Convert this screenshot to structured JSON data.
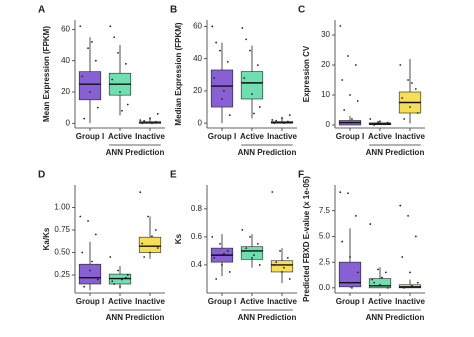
{
  "chart_data": [
    {
      "type": "box",
      "label": "A",
      "ylabel": "Mean Expression (FPKM)",
      "categories": [
        "Group I",
        "Active",
        "Inactive"
      ],
      "group_label": "ANN Prediction",
      "colors": [
        "#7a4fcf",
        "#5fdba8",
        "#f5dc45"
      ],
      "stats": [
        [
          0,
          15,
          25,
          33,
          55
        ],
        [
          5,
          18,
          25,
          32,
          50
        ],
        [
          0,
          0,
          0.3,
          1,
          4
        ]
      ],
      "points": [
        [
          62,
          48,
          40,
          30,
          20,
          10,
          3,
          52
        ],
        [
          62,
          45,
          38,
          28,
          20,
          12,
          55,
          8
        ],
        [
          2,
          0.5,
          1,
          0,
          3,
          6,
          1.5,
          0
        ]
      ],
      "ylim": [
        -3,
        66
      ],
      "yticks": [
        0,
        20,
        40,
        60
      ]
    },
    {
      "type": "box",
      "label": "B",
      "ylabel": "Median Expression (FPKM)",
      "categories": [
        "Group I",
        "Active",
        "Inactive"
      ],
      "group_label": "ANN Prediction",
      "colors": [
        "#7a4fcf",
        "#5fdba8",
        "#f5dc45"
      ],
      "stats": [
        [
          0,
          10,
          23,
          33,
          50
        ],
        [
          3,
          15,
          25,
          32,
          48
        ],
        [
          0,
          0,
          0.3,
          1,
          4
        ]
      ],
      "points": [
        [
          60,
          45,
          38,
          28,
          15,
          5,
          50,
          20
        ],
        [
          59,
          45,
          36,
          28,
          18,
          10,
          52,
          6
        ],
        [
          2,
          0.5,
          1,
          0,
          3,
          5,
          1.5,
          0
        ]
      ],
      "ylim": [
        -3,
        64
      ],
      "yticks": [
        0,
        20,
        40,
        60
      ]
    },
    {
      "type": "box",
      "label": "C",
      "ylabel": "Expression CV",
      "categories": [
        "Group I",
        "Active",
        "Inactive"
      ],
      "group_label": "ANN Prediction",
      "colors": [
        "#7a4fcf",
        "#5fdba8",
        "#f5dc45"
      ],
      "stats": [
        [
          0,
          0,
          0.8,
          1.5,
          3
        ],
        [
          0,
          0.1,
          0.4,
          0.7,
          1.5
        ],
        [
          0.5,
          4,
          7.5,
          11,
          22
        ]
      ],
      "points": [
        [
          33,
          23,
          20,
          15,
          10,
          8,
          5,
          2
        ],
        [
          2,
          1,
          0.5,
          0.3,
          1.2,
          0.8,
          0,
          0.2
        ],
        [
          20,
          15,
          12,
          9,
          6,
          4,
          2,
          14
        ]
      ],
      "ylim": [
        -1,
        35
      ],
      "yticks": [
        0,
        10,
        20,
        30
      ]
    },
    {
      "type": "box",
      "label": "D",
      "ylabel": "Ka/Ks",
      "categories": [
        "Group I",
        "Active",
        "Inactive"
      ],
      "group_label": "ANN Prediction",
      "colors": [
        "#7a4fcf",
        "#5fdba8",
        "#f5dc45"
      ],
      "stats": [
        [
          0.08,
          0.15,
          0.22,
          0.37,
          0.62
        ],
        [
          0.1,
          0.15,
          0.21,
          0.26,
          0.35
        ],
        [
          0.43,
          0.5,
          0.57,
          0.67,
          0.9
        ]
      ],
      "points": [
        [
          0.9,
          0.85,
          0.7,
          0.5,
          0.3,
          0.2,
          0.12,
          0.4
        ],
        [
          0.45,
          0.3,
          0.22,
          0.18,
          0.12,
          0.25,
          0.15,
          0.2
        ],
        [
          1.17,
          0.9,
          0.75,
          0.6,
          0.5,
          0.55,
          0.45,
          0.68
        ]
      ],
      "ylim": [
        0.05,
        1.25
      ],
      "yticks": [
        {
          "value": 0.25,
          "label": "0.25"
        },
        {
          "value": 0.5,
          "label": "0.50"
        },
        {
          "value": 0.75,
          "label": "0.75"
        },
        {
          "value": 1,
          "label": "1.00"
        }
      ]
    },
    {
      "type": "box",
      "label": "E",
      "ylabel": "Ks",
      "categories": [
        "Group I",
        "Active",
        "Inactive"
      ],
      "group_label": "ANN Prediction",
      "colors": [
        "#7a4fcf",
        "#5fdba8",
        "#f5dc45"
      ],
      "stats": [
        [
          0.32,
          0.42,
          0.47,
          0.52,
          0.62
        ],
        [
          0.38,
          0.44,
          0.5,
          0.53,
          0.62
        ],
        [
          0.27,
          0.35,
          0.4,
          0.43,
          0.52
        ]
      ],
      "points": [
        [
          0.6,
          0.55,
          0.5,
          0.45,
          0.4,
          0.35,
          0.3,
          0.48
        ],
        [
          0.65,
          0.6,
          0.55,
          0.5,
          0.45,
          0.4,
          0.52,
          0.47
        ],
        [
          0.92,
          0.5,
          0.45,
          0.4,
          0.35,
          0.3,
          0.42,
          0.38
        ]
      ],
      "ylim": [
        0.2,
        0.97
      ],
      "yticks": [
        0.4,
        0.6,
        0.8
      ]
    },
    {
      "type": "box",
      "label": "F",
      "ylabel": "Predicted FBXD E-value (x 1e-05)",
      "categories": [
        "Group I",
        "Active",
        "Inactive"
      ],
      "group_label": "ANN Prediction",
      "colors": [
        "#7a4fcf",
        "#5fdba8",
        "#f5dc45"
      ],
      "stats": [
        [
          0,
          0.1,
          0.5,
          2.5,
          5.8
        ],
        [
          0,
          0,
          0.2,
          0.9,
          2
        ],
        [
          0,
          0,
          0.1,
          0.3,
          0.8
        ]
      ],
      "points": [
        [
          9.3,
          9.2,
          7,
          4.5,
          3,
          1.5,
          0.5,
          0
        ],
        [
          6.2,
          1.8,
          1.5,
          0.8,
          0.3,
          0,
          0.5,
          1
        ],
        [
          8,
          7,
          5,
          3,
          1.5,
          0.5,
          0,
          0.2
        ]
      ],
      "ylim": [
        -0.5,
        10
      ],
      "yticks": [
        {
          "value": 0,
          "label": "0.0"
        },
        {
          "value": 2.5,
          "label": "2.5"
        },
        {
          "value": 5,
          "label": "5.0"
        },
        {
          "value": 7.5,
          "label": "7.5"
        }
      ]
    }
  ]
}
